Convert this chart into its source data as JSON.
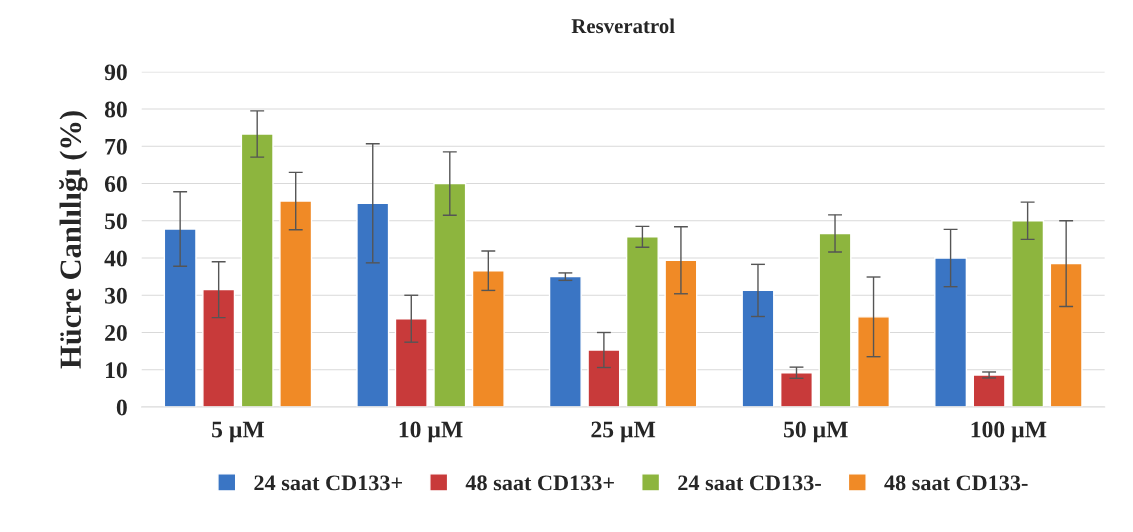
{
  "chart_data": {
    "type": "bar",
    "title": "Resveratrol",
    "ylabel": "Hücre Canlılığı (%)",
    "categories": [
      "5 µM",
      "10 µM",
      "25 µM",
      "50 µM",
      "100 µM"
    ],
    "series": [
      {
        "name": "24 saat CD133+",
        "color": "#3a75c4",
        "values": [
          47.8,
          54.7,
          35,
          31.3,
          40
        ],
        "errors": [
          10,
          16,
          1,
          7,
          7.7
        ]
      },
      {
        "name": "48 saat CD133+",
        "color": "#c83a3a",
        "values": [
          31.5,
          23.7,
          15.3,
          9.2,
          8.6
        ],
        "errors": [
          7.5,
          6.3,
          4.7,
          1.5,
          0.8
        ]
      },
      {
        "name": "24 saat CD133-",
        "color": "#8db53e",
        "values": [
          73.3,
          60,
          45.7,
          46.6,
          50
        ],
        "errors": [
          6.2,
          8.5,
          2.8,
          5,
          5
        ]
      },
      {
        "name": "48 saat CD133-",
        "color": "#f08a26",
        "values": [
          55.3,
          36.6,
          39.4,
          24.2,
          38.5
        ],
        "errors": [
          7.7,
          5.3,
          9,
          10.7,
          11.5
        ]
      }
    ],
    "ylim": [
      0,
      90
    ],
    "yticks": [
      0,
      10,
      20,
      30,
      40,
      50,
      60,
      70,
      80,
      90
    ],
    "grid": "y",
    "legend": "bottom"
  }
}
